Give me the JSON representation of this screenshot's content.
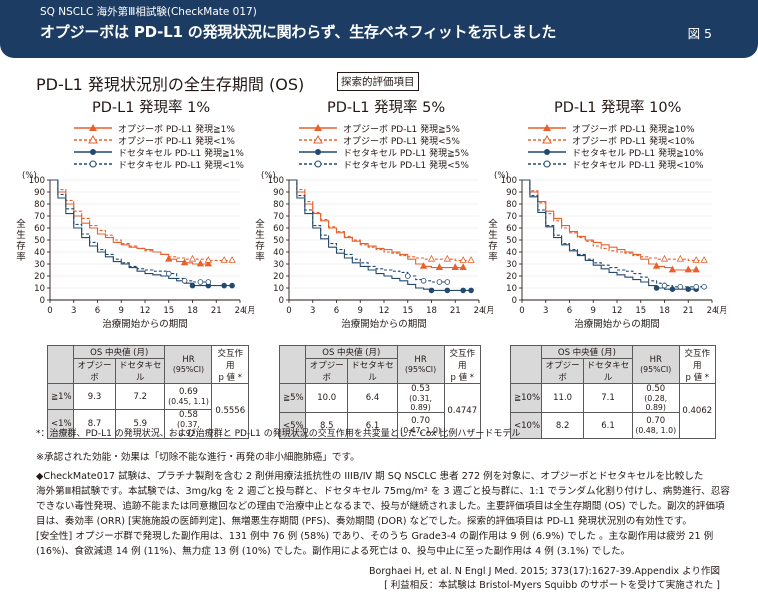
{
  "header": {
    "subtitle": "SQ NSCLC 海外第Ⅲ相試験(CheckMate 017)",
    "title": "オプジーボは PD-L1 の発現状況に関わらず、生存ベネフィットを示しました",
    "figure_label": "図 5"
  },
  "main_title": "PD-L1 発現状況別の全生存期間 (OS)",
  "main_tag": "探索的評価項目",
  "chart_data": [
    {
      "type": "line",
      "title": "PD-L1 発現率 1%",
      "xlabel": "治療開始からの期間",
      "x_unit": "(月)",
      "ylabel": "全生存率",
      "y_unit": "(%)",
      "xlim": [
        0,
        24
      ],
      "ylim": [
        0,
        100
      ],
      "xticks": [
        0,
        3,
        6,
        9,
        12,
        15,
        18,
        21,
        24
      ],
      "yticks": [
        0,
        10,
        20,
        30,
        40,
        50,
        60,
        70,
        80,
        90,
        100
      ],
      "series": [
        {
          "name": "オプジーボ PD-L1 発現≧1%",
          "color": "#e8612c",
          "dashed": false,
          "marker": "triangle",
          "x": [
            0,
            1,
            2,
            3,
            4,
            5,
            6,
            7,
            8,
            9,
            10,
            11,
            12,
            13,
            14,
            15,
            16,
            17,
            18,
            19,
            20
          ],
          "y": [
            100,
            90,
            80,
            70,
            64,
            60,
            55,
            52,
            48,
            46,
            44,
            43,
            42,
            40,
            38,
            34,
            32,
            31,
            30,
            30,
            30
          ]
        },
        {
          "name": "オプジーボ PD-L1 発現<1%",
          "color": "#e8612c",
          "dashed": true,
          "marker": "triangle-open",
          "x": [
            0,
            1,
            2,
            3,
            4,
            5,
            6,
            7,
            8,
            9,
            10,
            11,
            12,
            13,
            14,
            15,
            16,
            17,
            18,
            19,
            20,
            21,
            22,
            23
          ],
          "y": [
            100,
            92,
            83,
            74,
            68,
            62,
            58,
            54,
            50,
            47,
            45,
            43,
            41,
            40,
            38,
            36,
            35,
            34,
            34,
            34,
            33,
            33,
            33,
            33
          ]
        },
        {
          "name": "ドセタキセル PD-L1 発現≧1%",
          "color": "#234a6e",
          "dashed": false,
          "marker": "circle",
          "x": [
            0,
            1,
            2,
            3,
            4,
            5,
            6,
            7,
            8,
            9,
            10,
            11,
            12,
            13,
            14,
            15,
            16,
            17,
            18,
            19,
            20,
            21,
            22,
            23
          ],
          "y": [
            100,
            85,
            72,
            60,
            52,
            45,
            40,
            36,
            32,
            30,
            27,
            24,
            22,
            21,
            20,
            18,
            16,
            14,
            12,
            12,
            12,
            12,
            12,
            12
          ]
        },
        {
          "name": "ドセタキセル PD-L1 発現<1%",
          "color": "#234a6e",
          "dashed": true,
          "marker": "circle-open",
          "x": [
            0,
            1,
            2,
            3,
            4,
            5,
            6,
            7,
            8,
            9,
            10,
            11,
            12,
            13,
            14,
            15,
            16,
            17,
            18,
            19,
            20
          ],
          "y": [
            100,
            88,
            76,
            63,
            55,
            48,
            42,
            38,
            34,
            31,
            28,
            26,
            25,
            24,
            24,
            22,
            18,
            16,
            15,
            15,
            15
          ]
        }
      ]
    },
    {
      "type": "line",
      "title": "PD-L1 発現率 5%",
      "xlabel": "治療開始からの期間",
      "x_unit": "(月)",
      "ylabel": "全生存率",
      "y_unit": "(%)",
      "xlim": [
        0,
        24
      ],
      "ylim": [
        0,
        100
      ],
      "xticks": [
        0,
        3,
        6,
        9,
        12,
        15,
        18,
        21,
        24
      ],
      "yticks": [
        0,
        10,
        20,
        30,
        40,
        50,
        60,
        70,
        80,
        90,
        100
      ],
      "series": [
        {
          "name": "オプジーボ PD-L1 発現≧5%",
          "color": "#e8612c",
          "dashed": false,
          "marker": "triangle",
          "x": [
            0,
            1,
            2,
            3,
            4,
            5,
            6,
            7,
            8,
            9,
            10,
            11,
            12,
            13,
            14,
            15,
            16,
            17,
            18,
            19,
            20,
            21,
            22
          ],
          "y": [
            100,
            90,
            80,
            72,
            66,
            60,
            56,
            52,
            49,
            47,
            45,
            43,
            42,
            40,
            38,
            34,
            30,
            28,
            27,
            27,
            27,
            27,
            27
          ]
        },
        {
          "name": "オプジーボ PD-L1 発現<5%",
          "color": "#e8612c",
          "dashed": true,
          "marker": "triangle-open",
          "x": [
            0,
            1,
            2,
            3,
            4,
            5,
            6,
            7,
            8,
            9,
            10,
            11,
            12,
            13,
            14,
            15,
            16,
            17,
            18,
            19,
            20,
            21,
            22,
            23
          ],
          "y": [
            100,
            92,
            82,
            73,
            67,
            61,
            57,
            53,
            50,
            46,
            44,
            42,
            40,
            39,
            37,
            36,
            35,
            34,
            34,
            34,
            34,
            33,
            33,
            33
          ]
        },
        {
          "name": "ドセタキセル PD-L1 発現≧5%",
          "color": "#234a6e",
          "dashed": false,
          "marker": "circle",
          "x": [
            0,
            1,
            2,
            3,
            4,
            5,
            6,
            7,
            8,
            9,
            10,
            11,
            12,
            13,
            14,
            15,
            16,
            17,
            18,
            19,
            20,
            21,
            22,
            23
          ],
          "y": [
            100,
            85,
            72,
            60,
            51,
            44,
            39,
            35,
            31,
            28,
            25,
            22,
            20,
            18,
            16,
            13,
            10,
            9,
            8,
            8,
            8,
            8,
            8,
            8
          ]
        },
        {
          "name": "ドセタキセル PD-L1 発現<5%",
          "color": "#234a6e",
          "dashed": true,
          "marker": "circle-open",
          "x": [
            0,
            1,
            2,
            3,
            4,
            5,
            6,
            7,
            8,
            9,
            10,
            11,
            12,
            13,
            14,
            15,
            16,
            17,
            18,
            19,
            20
          ],
          "y": [
            100,
            87,
            75,
            62,
            54,
            47,
            42,
            38,
            34,
            31,
            28,
            26,
            25,
            24,
            23,
            20,
            17,
            16,
            15,
            15,
            15
          ]
        }
      ]
    },
    {
      "type": "line",
      "title": "PD-L1 発現率 10%",
      "xlabel": "治療開始からの期間",
      "x_unit": "(月)",
      "ylabel": "全生存率",
      "y_unit": "(%)",
      "xlim": [
        0,
        24
      ],
      "ylim": [
        0,
        100
      ],
      "xticks": [
        0,
        3,
        6,
        9,
        12,
        15,
        18,
        21,
        24
      ],
      "yticks": [
        0,
        10,
        20,
        30,
        40,
        50,
        60,
        70,
        80,
        90,
        100
      ],
      "series": [
        {
          "name": "オプジーボ PD-L1 発現≧10%",
          "color": "#e8612c",
          "dashed": false,
          "marker": "triangle",
          "x": [
            0,
            1,
            2,
            3,
            4,
            5,
            6,
            7,
            8,
            9,
            10,
            11,
            12,
            13,
            14,
            15,
            16,
            17,
            18,
            19,
            20,
            21,
            22
          ],
          "y": [
            100,
            90,
            82,
            74,
            68,
            62,
            57,
            53,
            50,
            48,
            46,
            44,
            42,
            40,
            38,
            34,
            30,
            28,
            27,
            25,
            25,
            25,
            25
          ]
        },
        {
          "name": "オプジーボ PD-L1 発現<10%",
          "color": "#e8612c",
          "dashed": true,
          "marker": "triangle-open",
          "x": [
            0,
            1,
            2,
            3,
            4,
            5,
            6,
            7,
            8,
            9,
            10,
            11,
            12,
            13,
            14,
            15,
            16,
            17,
            18,
            19,
            20,
            21,
            22,
            23
          ],
          "y": [
            100,
            91,
            81,
            72,
            66,
            60,
            56,
            52,
            49,
            45,
            43,
            41,
            40,
            39,
            37,
            36,
            35,
            34,
            34,
            34,
            34,
            33,
            33,
            33
          ]
        },
        {
          "name": "ドセタキセル PD-L1 発現≧10%",
          "color": "#234a6e",
          "dashed": false,
          "marker": "circle",
          "x": [
            0,
            1,
            2,
            3,
            4,
            5,
            6,
            7,
            8,
            9,
            10,
            11,
            12,
            13,
            14,
            15,
            16,
            17,
            18,
            19,
            20,
            21,
            22
          ],
          "y": [
            100,
            86,
            73,
            61,
            52,
            46,
            41,
            37,
            33,
            29,
            26,
            23,
            21,
            19,
            17,
            15,
            12,
            10,
            9,
            9,
            9,
            9,
            9
          ]
        },
        {
          "name": "ドセタキセル PD-L1 発現<10%",
          "color": "#234a6e",
          "dashed": true,
          "marker": "circle-open",
          "x": [
            0,
            1,
            2,
            3,
            4,
            5,
            6,
            7,
            8,
            9,
            10,
            11,
            12,
            13,
            14,
            15,
            16,
            17,
            18,
            19,
            20,
            21,
            22,
            23
          ],
          "y": [
            100,
            87,
            75,
            62,
            54,
            47,
            42,
            38,
            34,
            31,
            29,
            27,
            25,
            24,
            22,
            19,
            16,
            14,
            12,
            11,
            11,
            11,
            11,
            11
          ]
        }
      ]
    }
  ],
  "tables": {
    "headers": {
      "os_median": "OS 中央値 (月)",
      "opdivo": "オプジーボ",
      "docetaxel": "ドセタキセル",
      "hr": "HR",
      "hr_ci": "(95%CI)",
      "interaction": "交互作用",
      "p_value": "p 値 *"
    },
    "t1": {
      "p": "0.5556",
      "rows": [
        {
          "label": "≧1%",
          "opdivo": "9.3",
          "docetaxel": "7.2",
          "hr": "0.69",
          "ci": "(0.45, 1.1)"
        },
        {
          "label": "<1%",
          "opdivo": "8.7",
          "docetaxel": "5.9",
          "hr": "0.58",
          "ci": "(0.37, 0.92)"
        }
      ]
    },
    "t2": {
      "p": "0.4747",
      "rows": [
        {
          "label": "≧5%",
          "opdivo": "10.0",
          "docetaxel": "6.4",
          "hr": "0.53",
          "ci": "(0.31, 0.89)"
        },
        {
          "label": "<5%",
          "opdivo": "8.5",
          "docetaxel": "6.1",
          "hr": "0.70",
          "ci": "(0.47, 1.0)"
        }
      ]
    },
    "t3": {
      "p": "0.4062",
      "rows": [
        {
          "label": "≧10%",
          "opdivo": "11.0",
          "docetaxel": "7.1",
          "hr": "0.50",
          "ci": "(0.28, 0.89)"
        },
        {
          "label": "<10%",
          "opdivo": "8.2",
          "docetaxel": "6.1",
          "hr": "0.70",
          "ci": "(0.48, 1.0)"
        }
      ]
    }
  },
  "footnote_interaction": "*：治療群、PD-L1 の発現状況、および治療群と PD-L1 の発現状況の交互作用を共変量とした Cox 比例ハザードモデル",
  "footnote_indication": "※承認された効能・効果は「切除不能な進行・再発の非小細胞肺癌」です。",
  "body": [
    "◆CheckMate017 試験は、プラチナ製剤を含む 2 剤併用療法抵抗性の IIIB/IV 期 SQ NSCLC 患者 272 例を対象に、オプジーボとドセタキセルを比較した",
    "海外第Ⅲ相試験です。本試験では、3mg/kg を 2 週ごと投与群と、ドセタキセル 75mg/m² を 3 週ごと投与群に、1:1 でランダム化割り付けし、病勢進行、忍容",
    "できない毒性発現、追跡不能または同意撤回などの理由で治療中止となるまで、投与が継続されました。主要評価項目は全生存期間 (OS) でした。副次的評価項",
    "目は、奏効率 (ORR) [実施施設の医師判定]、無増悪生存期間 (PFS)、奏効期間 (DOR) などでした。探索的評価項目は PD-L1 発現状況別の有効性です。",
    "[安全性]  オプジーボ群で発現した副作用は、131 例中 76 例 (58%) であり、そのうち Grade3-4 の副作用は 9 例 (6.9%) でした 。主な副作用は疲労 21 例",
    "(16%)、食欲減退 14 例 (11%)、無力症 13 例 (10%) でした。副作用による死亡は 0、投与中止に至った副作用は 4 例 (3.1%) でした。"
  ],
  "citation": "Borghaei H, et al. N Engl J Med. 2015; 373(17):1627-39.Appendix より作図",
  "sponsor": "[ 利益相反：本試験は Bristol-Myers Squibb のサポートを受けて実施された ]"
}
